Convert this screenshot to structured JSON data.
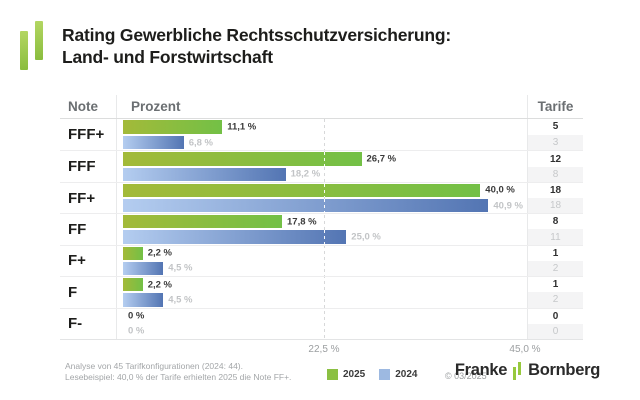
{
  "title": {
    "line1": "Rating Gewerbliche Rechtsschutzversicherung:",
    "line2": "Land- und Forstwirtschaft"
  },
  "table": {
    "columns": {
      "note": "Note",
      "percent": "Prozent",
      "tariffs": "Tarife"
    }
  },
  "chart_data": {
    "type": "bar",
    "orientation": "horizontal",
    "title": "Rating Gewerbliche Rechtsschutzversicherung: Land- und Forstwirtschaft",
    "categories": [
      "FFF+",
      "FFF",
      "FF+",
      "FF",
      "F+",
      "F",
      "F-"
    ],
    "series": [
      {
        "name": "2025",
        "color": "#8bc043",
        "values": [
          11.1,
          26.7,
          40.0,
          17.8,
          2.2,
          2.2,
          0
        ],
        "value_labels": [
          "11,1 %",
          "26,7 %",
          "40,0 %",
          "17,8 %",
          "2,2 %",
          "2,2 %",
          "0 %"
        ],
        "tariffs": [
          5,
          12,
          18,
          8,
          1,
          1,
          0
        ]
      },
      {
        "name": "2024",
        "color": "#9db9e1",
        "values": [
          6.8,
          18.2,
          40.9,
          25.0,
          4.5,
          4.5,
          0
        ],
        "value_labels": [
          "6,8 %",
          "18,2 %",
          "40,9 %",
          "25,0 %",
          "4,5 %",
          "4,5 %",
          "0 %"
        ],
        "tariffs": [
          3,
          8,
          18,
          11,
          2,
          2,
          0
        ]
      }
    ],
    "xlim": [
      0,
      45
    ],
    "ticks": [
      {
        "value": 22.5,
        "label": "22,5 %"
      },
      {
        "value": 45.0,
        "label": "45,0 %"
      }
    ],
    "grid": "dashed-vertical",
    "legend_position": "bottom"
  },
  "footer": {
    "note_line1": "Analyse von 45 Tarifkonfigurationen (2024: 44).",
    "note_line2": "Lesebeispiel: 40,0 % der Tarife erhielten 2025 die Note FF+.",
    "copyright": "© 03/2025",
    "brand": {
      "name1": "Franke",
      "name2": "Bornberg"
    }
  },
  "colors": {
    "bar_2025_start": "#a3ba39",
    "bar_2025_end": "#73c046",
    "bar_2024_start": "#b4cdf0",
    "bar_2024_end": "#5375b3",
    "accent_green": "#8bc043",
    "accent_blue": "#9db9e1"
  }
}
